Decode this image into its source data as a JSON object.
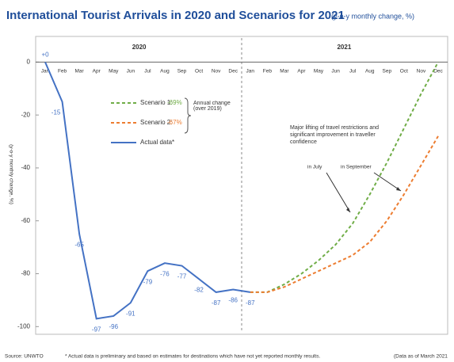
{
  "chart_data": {
    "type": "line",
    "title": "International Tourist Arrivals in 2020 and Scenarios for 2021",
    "subtitle": "(y-o-y monthly change, %)",
    "y_label": "(y-o-y monthly change, %)",
    "year_groups": [
      "2020",
      "2021"
    ],
    "categories": [
      "Jan",
      "Feb",
      "Mar",
      "Apr",
      "May",
      "Jun",
      "Jul",
      "Aug",
      "Sep",
      "Oct",
      "Nov",
      "Dec",
      "Jan",
      "Feb",
      "Mar",
      "Apr",
      "May",
      "Jun",
      "Jul",
      "Aug",
      "Sep",
      "Oct",
      "Nov",
      "Dec"
    ],
    "ylim": [
      -102,
      10
    ],
    "yticks": [
      0,
      -20,
      -40,
      -60,
      -80,
      -100
    ],
    "series": [
      {
        "name": "Scenario 1:",
        "annual_change": "-69%",
        "color": "#70ad47",
        "dashed": true,
        "values": [
          null,
          null,
          null,
          null,
          null,
          null,
          null,
          null,
          null,
          null,
          null,
          null,
          -87,
          -87,
          -84,
          -80,
          -75,
          -69,
          -61,
          -50,
          -38,
          -25,
          -12,
          0
        ]
      },
      {
        "name": "Scenario 2:",
        "annual_change": "-67%",
        "color": "#ed7d31",
        "dashed": true,
        "values": [
          null,
          null,
          null,
          null,
          null,
          null,
          null,
          null,
          null,
          null,
          null,
          null,
          -87,
          -87,
          -85,
          -82,
          -79,
          -76,
          -73,
          -68,
          -60,
          -50,
          -39,
          -28
        ]
      },
      {
        "name": "Actual data*",
        "color": "#4472c4",
        "dashed": false,
        "values": [
          0,
          -15,
          -65,
          -97,
          -96,
          -91,
          -79,
          -76,
          -77,
          -82,
          -87,
          -86,
          -87,
          null,
          null,
          null,
          null,
          null,
          null,
          null,
          null,
          null,
          null,
          null
        ],
        "value_labels": [
          "+0",
          "-15",
          "-65",
          "-97",
          "-96",
          "-91",
          "-79",
          "-76",
          "-77",
          "-82",
          "-87",
          "-86",
          "-87",
          null,
          null,
          null,
          null,
          null,
          null,
          null,
          null,
          null,
          null,
          null
        ]
      }
    ],
    "legend_note": "Annual change (over 2019)",
    "annotation": "Major lifting of travel restrictions and significant improvement in traveller confidence",
    "annotation_july": "in July",
    "annotation_september": "in September",
    "source": "Source: UNWTO",
    "footnote": "* Actual data is preliminary and based on estimates for destinations which have not yet reported monthly results.",
    "data_note": "(Data as of March 2021"
  }
}
